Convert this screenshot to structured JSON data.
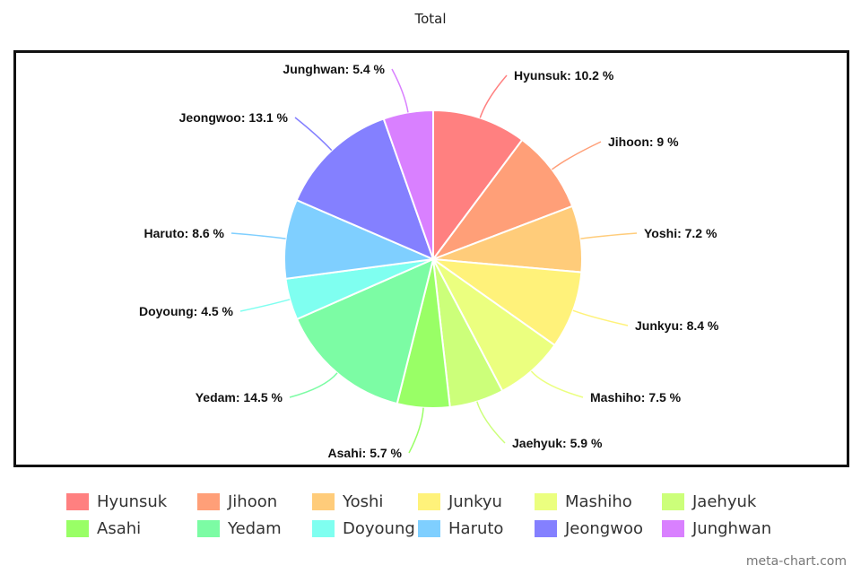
{
  "chart_data": {
    "type": "pie",
    "title": "Total",
    "slices": [
      {
        "name": "Hyunsuk",
        "value": 10.2,
        "label": "Hyunsuk: 10.2 %",
        "color": "#ff8080"
      },
      {
        "name": "Jihoon",
        "value": 9,
        "label": "Jihoon: 9 %",
        "color": "#ff9f78"
      },
      {
        "name": "Yoshi",
        "value": 7.2,
        "label": "Yoshi: 7.2 %",
        "color": "#ffcc7a"
      },
      {
        "name": "Junkyu",
        "value": 8.4,
        "label": "Junkyu: 8.4 %",
        "color": "#fff27a"
      },
      {
        "name": "Mashiho",
        "value": 7.5,
        "label": "Mashiho: 7.5 %",
        "color": "#ebff7f"
      },
      {
        "name": "Jaehyuk",
        "value": 5.9,
        "label": "Jaehyuk: 5.9 %",
        "color": "#ccff7a"
      },
      {
        "name": "Asahi",
        "value": 5.7,
        "label": "Asahi: 5.7 %",
        "color": "#99ff66"
      },
      {
        "name": "Yedam",
        "value": 14.5,
        "label": "Yedam: 14.5 %",
        "color": "#7cfca4"
      },
      {
        "name": "Doyoung",
        "value": 4.5,
        "label": "Doyoung: 4.5 %",
        "color": "#7ffff0"
      },
      {
        "name": "Haruto",
        "value": 8.6,
        "label": "Haruto: 8.6 %",
        "color": "#7fcfff"
      },
      {
        "name": "Jeongwoo",
        "value": 13.1,
        "label": "Jeongwoo: 13.1 %",
        "color": "#8480ff"
      },
      {
        "name": "Junghwan",
        "value": 5.4,
        "label": "Junghwan: 5.4 %",
        "color": "#d980ff"
      }
    ],
    "legend_placement": "bottom"
  },
  "watermark": "meta-chart.com"
}
